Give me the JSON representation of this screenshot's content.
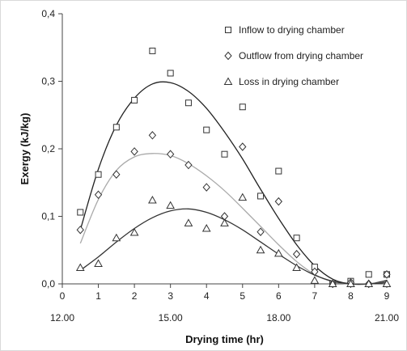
{
  "chart_data": {
    "type": "scatter",
    "title": "",
    "xlabel": "Drying time (hr)",
    "ylabel": "Exergy (kJ/kg)",
    "xlim": [
      0,
      9
    ],
    "ylim": [
      0,
      0.4
    ],
    "x_ticks": [
      "0",
      "1",
      "2",
      "3",
      "4",
      "5",
      "6",
      "7",
      "8",
      "9"
    ],
    "y_ticks": [
      "0,0",
      "0,1",
      "0,2",
      "0,3",
      "0,4"
    ],
    "secondary_x_ticks": [
      {
        "x": 0,
        "label": "12.00"
      },
      {
        "x": 3,
        "label": "15.00"
      },
      {
        "x": 6,
        "label": "18.00"
      },
      {
        "x": 9,
        "label": "21.00"
      }
    ],
    "grid": false,
    "legend_position": "top-right",
    "series": [
      {
        "name": "Inflow to drying chamber",
        "marker": "square",
        "points": [
          [
            0.5,
            0.106
          ],
          [
            1,
            0.162
          ],
          [
            1.5,
            0.232
          ],
          [
            2,
            0.272
          ],
          [
            2.5,
            0.345
          ],
          [
            3,
            0.312
          ],
          [
            3.5,
            0.268
          ],
          [
            4,
            0.228
          ],
          [
            4.5,
            0.192
          ],
          [
            5,
            0.262
          ],
          [
            5.5,
            0.13
          ],
          [
            6,
            0.167
          ],
          [
            6.5,
            0.068
          ],
          [
            7,
            0.025
          ],
          [
            7.5,
            0.0
          ],
          [
            8,
            0.004
          ],
          [
            8.5,
            0.014
          ],
          [
            9,
            0.014
          ]
        ],
        "fit": [
          [
            0.5,
            0.08
          ],
          [
            1,
            0.17
          ],
          [
            1.5,
            0.235
          ],
          [
            2,
            0.275
          ],
          [
            2.5,
            0.296
          ],
          [
            3,
            0.298
          ],
          [
            3.5,
            0.285
          ],
          [
            4,
            0.26
          ],
          [
            4.5,
            0.225
          ],
          [
            5,
            0.185
          ],
          [
            5.5,
            0.14
          ],
          [
            6,
            0.097
          ],
          [
            6.5,
            0.058
          ],
          [
            7,
            0.027
          ],
          [
            7.5,
            0.007
          ],
          [
            8,
            0.0
          ],
          [
            8.5,
            0.0
          ],
          [
            9,
            0.005
          ]
        ]
      },
      {
        "name": "Outflow from drying chamber",
        "marker": "diamond",
        "points": [
          [
            0.5,
            0.08
          ],
          [
            1,
            0.132
          ],
          [
            1.5,
            0.162
          ],
          [
            2,
            0.196
          ],
          [
            2.5,
            0.22
          ],
          [
            3,
            0.192
          ],
          [
            3.5,
            0.176
          ],
          [
            4,
            0.143
          ],
          [
            4.5,
            0.1
          ],
          [
            5,
            0.203
          ],
          [
            5.5,
            0.077
          ],
          [
            6,
            0.122
          ],
          [
            6.5,
            0.044
          ],
          [
            7,
            0.018
          ],
          [
            7.5,
            0.0
          ],
          [
            8,
            0.002
          ],
          [
            8.5,
            0.0
          ],
          [
            9,
            0.014
          ]
        ],
        "fit": [
          [
            0.5,
            0.06
          ],
          [
            1,
            0.125
          ],
          [
            1.5,
            0.168
          ],
          [
            2,
            0.188
          ],
          [
            2.5,
            0.193
          ],
          [
            3,
            0.19
          ],
          [
            3.5,
            0.178
          ],
          [
            4,
            0.16
          ],
          [
            4.5,
            0.138
          ],
          [
            5,
            0.112
          ],
          [
            5.5,
            0.085
          ],
          [
            6,
            0.058
          ],
          [
            6.5,
            0.033
          ],
          [
            7,
            0.014
          ],
          [
            7.5,
            0.003
          ],
          [
            8,
            0.0
          ],
          [
            8.5,
            0.0
          ],
          [
            9,
            0.003
          ]
        ]
      },
      {
        "name": "Loss in drying chamber",
        "marker": "triangle",
        "points": [
          [
            0.5,
            0.024
          ],
          [
            1,
            0.03
          ],
          [
            1.5,
            0.068
          ],
          [
            2,
            0.076
          ],
          [
            2.5,
            0.124
          ],
          [
            3,
            0.116
          ],
          [
            3.5,
            0.09
          ],
          [
            4,
            0.082
          ],
          [
            4.5,
            0.09
          ],
          [
            5,
            0.128
          ],
          [
            5.5,
            0.05
          ],
          [
            6,
            0.045
          ],
          [
            6.5,
            0.024
          ],
          [
            7,
            0.005
          ],
          [
            7.5,
            0.0
          ],
          [
            8,
            0.0
          ],
          [
            8.5,
            0.0
          ],
          [
            9,
            0.0
          ]
        ],
        "fit": [
          [
            0.5,
            0.02
          ],
          [
            1,
            0.04
          ],
          [
            1.5,
            0.062
          ],
          [
            2,
            0.082
          ],
          [
            2.5,
            0.098
          ],
          [
            3,
            0.108
          ],
          [
            3.5,
            0.111
          ],
          [
            4,
            0.106
          ],
          [
            4.5,
            0.095
          ],
          [
            5,
            0.08
          ],
          [
            5.5,
            0.062
          ],
          [
            6,
            0.044
          ],
          [
            6.5,
            0.027
          ],
          [
            7,
            0.013
          ],
          [
            7.5,
            0.004
          ],
          [
            8,
            0.0
          ],
          [
            8.5,
            0.0
          ],
          [
            9,
            0.002
          ]
        ]
      }
    ]
  },
  "colors": {
    "fit_lines": [
      "#222222",
      "#aaaaaa",
      "#333333"
    ],
    "markers": "#333333",
    "axis": "#444444"
  }
}
